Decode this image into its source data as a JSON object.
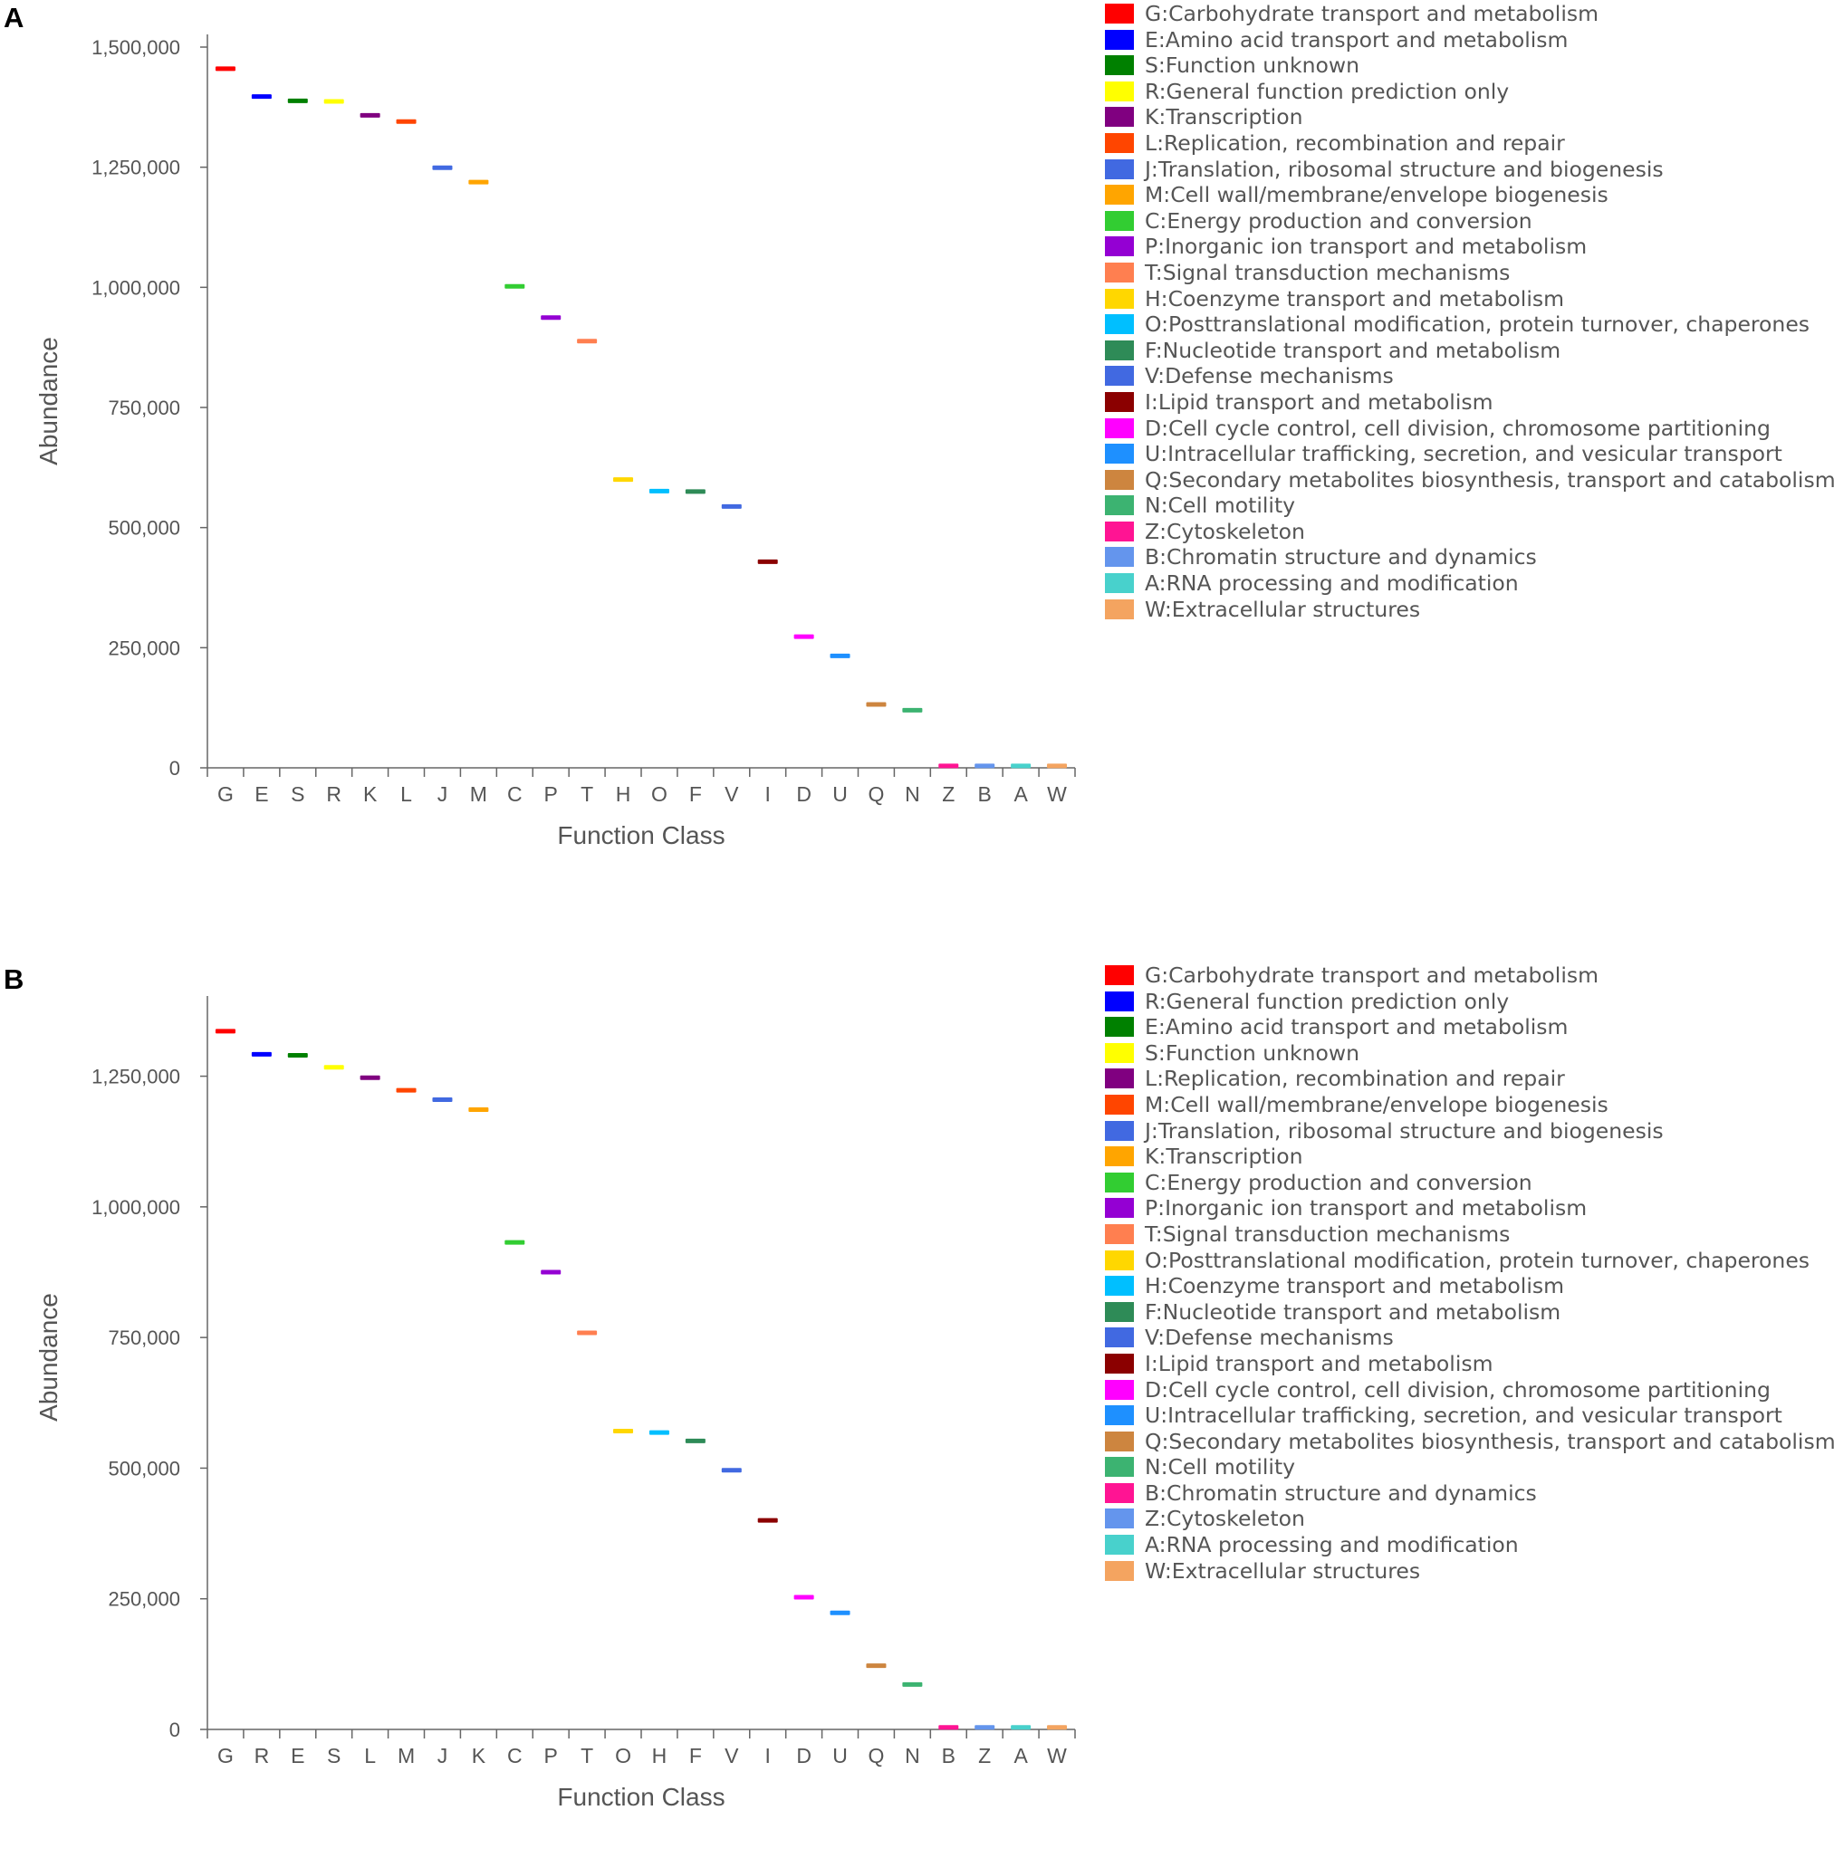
{
  "chart_data": [
    {
      "type": "box",
      "panel_label": "A",
      "xlabel": "Function Class",
      "ylabel": "Abundance",
      "ylim": [
        0,
        1500000
      ],
      "yticks": [
        0,
        250000,
        500000,
        750000,
        1000000,
        1250000,
        1500000
      ],
      "ytick_labels": [
        "0",
        "250,000",
        "500,000",
        "750,000",
        "1,000,000",
        "1,250,000",
        "1,500,000"
      ],
      "categories": [
        "G",
        "E",
        "S",
        "R",
        "K",
        "L",
        "J",
        "M",
        "C",
        "P",
        "T",
        "H",
        "O",
        "F",
        "V",
        "I",
        "D",
        "U",
        "Q",
        "N",
        "Z",
        "B",
        "A",
        "W"
      ],
      "values": [
        1455000,
        1397000,
        1388000,
        1387000,
        1358000,
        1345000,
        1249000,
        1219000,
        1002000,
        937000,
        888000,
        600000,
        576000,
        575000,
        544000,
        429000,
        273000,
        233000,
        132000,
        120000,
        4000,
        4000,
        4000,
        4000
      ],
      "colors": [
        "#ff0000",
        "#0000ff",
        "#008000",
        "#ffff00",
        "#800080",
        "#ff4500",
        "#4169e1",
        "#ffa500",
        "#32cd32",
        "#9400d3",
        "#ff7f50",
        "#ffd700",
        "#00bfff",
        "#2e8b57",
        "#4169e1",
        "#8b0000",
        "#ff00ff",
        "#1e90ff",
        "#cd853f",
        "#3cb371",
        "#ff1493",
        "#6495ed",
        "#48d1cc",
        "#f4a460"
      ],
      "legend": [
        {
          "label": "G:Carbohydrate transport and metabolism",
          "color": "#ff0000"
        },
        {
          "label": "E:Amino acid transport and metabolism",
          "color": "#0000ff"
        },
        {
          "label": "S:Function unknown",
          "color": "#008000"
        },
        {
          "label": "R:General function prediction only",
          "color": "#ffff00"
        },
        {
          "label": "K:Transcription",
          "color": "#800080"
        },
        {
          "label": "L:Replication, recombination and repair",
          "color": "#ff4500"
        },
        {
          "label": "J:Translation, ribosomal structure and biogenesis",
          "color": "#4169e1"
        },
        {
          "label": "M:Cell wall/membrane/envelope biogenesis",
          "color": "#ffa500"
        },
        {
          "label": "C:Energy production and conversion",
          "color": "#32cd32"
        },
        {
          "label": "P:Inorganic ion transport and metabolism",
          "color": "#9400d3"
        },
        {
          "label": "T:Signal transduction mechanisms",
          "color": "#ff7f50"
        },
        {
          "label": "H:Coenzyme transport and metabolism",
          "color": "#ffd700"
        },
        {
          "label": "O:Posttranslational modification, protein turnover, chaperones",
          "color": "#00bfff"
        },
        {
          "label": "F:Nucleotide transport and metabolism",
          "color": "#2e8b57"
        },
        {
          "label": "V:Defense mechanisms",
          "color": "#4169e1"
        },
        {
          "label": "I:Lipid transport and metabolism",
          "color": "#8b0000"
        },
        {
          "label": "D:Cell cycle control, cell division, chromosome partitioning",
          "color": "#ff00ff"
        },
        {
          "label": "U:Intracellular trafficking, secretion, and vesicular transport",
          "color": "#1e90ff"
        },
        {
          "label": "Q:Secondary metabolites biosynthesis, transport and catabolism",
          "color": "#cd853f"
        },
        {
          "label": "N:Cell motility",
          "color": "#3cb371"
        },
        {
          "label": "Z:Cytoskeleton",
          "color": "#ff1493"
        },
        {
          "label": "B:Chromatin structure and dynamics",
          "color": "#6495ed"
        },
        {
          "label": "A:RNA processing and modification",
          "color": "#48d1cc"
        },
        {
          "label": "W:Extracellular structures",
          "color": "#f4a460"
        }
      ]
    },
    {
      "type": "box",
      "panel_label": "B",
      "xlabel": "Function Class",
      "ylabel": "Abundance",
      "ylim": [
        0,
        1400000
      ],
      "yticks": [
        0,
        250000,
        500000,
        750000,
        1000000,
        1250000
      ],
      "ytick_labels": [
        "0",
        "250,000",
        "500,000",
        "750,000",
        "1,000,000",
        "1,250,000"
      ],
      "categories": [
        "G",
        "R",
        "E",
        "S",
        "L",
        "M",
        "J",
        "K",
        "C",
        "P",
        "T",
        "O",
        "H",
        "F",
        "V",
        "I",
        "D",
        "U",
        "Q",
        "N",
        "B",
        "Z",
        "A",
        "W"
      ],
      "values": [
        1336000,
        1292000,
        1290000,
        1267000,
        1247000,
        1223000,
        1205000,
        1186000,
        932000,
        875000,
        759000,
        571000,
        568000,
        552000,
        496000,
        400000,
        253000,
        223000,
        122000,
        86000,
        4000,
        4000,
        4000,
        4000
      ],
      "colors": [
        "#ff0000",
        "#0000ff",
        "#008000",
        "#ffff00",
        "#800080",
        "#ff4500",
        "#4169e1",
        "#ffa500",
        "#32cd32",
        "#9400d3",
        "#ff7f50",
        "#ffd700",
        "#00bfff",
        "#2e8b57",
        "#4169e1",
        "#8b0000",
        "#ff00ff",
        "#1e90ff",
        "#cd853f",
        "#3cb371",
        "#ff1493",
        "#6495ed",
        "#48d1cc",
        "#f4a460"
      ],
      "legend": [
        {
          "label": "G:Carbohydrate transport and metabolism",
          "color": "#ff0000"
        },
        {
          "label": "R:General function prediction only",
          "color": "#0000ff"
        },
        {
          "label": "E:Amino acid transport and metabolism",
          "color": "#008000"
        },
        {
          "label": "S:Function unknown",
          "color": "#ffff00"
        },
        {
          "label": "L:Replication, recombination and repair",
          "color": "#800080"
        },
        {
          "label": "M:Cell wall/membrane/envelope biogenesis",
          "color": "#ff4500"
        },
        {
          "label": "J:Translation, ribosomal structure and biogenesis",
          "color": "#4169e1"
        },
        {
          "label": "K:Transcription",
          "color": "#ffa500"
        },
        {
          "label": "C:Energy production and conversion",
          "color": "#32cd32"
        },
        {
          "label": "P:Inorganic ion transport and metabolism",
          "color": "#9400d3"
        },
        {
          "label": "T:Signal transduction mechanisms",
          "color": "#ff7f50"
        },
        {
          "label": "O:Posttranslational modification, protein turnover, chaperones",
          "color": "#ffd700"
        },
        {
          "label": "H:Coenzyme transport and metabolism",
          "color": "#00bfff"
        },
        {
          "label": "F:Nucleotide transport and metabolism",
          "color": "#2e8b57"
        },
        {
          "label": "V:Defense mechanisms",
          "color": "#4169e1"
        },
        {
          "label": "I:Lipid transport and metabolism",
          "color": "#8b0000"
        },
        {
          "label": "D:Cell cycle control, cell division, chromosome partitioning",
          "color": "#ff00ff"
        },
        {
          "label": "U:Intracellular trafficking, secretion, and vesicular transport",
          "color": "#1e90ff"
        },
        {
          "label": "Q:Secondary metabolites biosynthesis, transport and catabolism",
          "color": "#cd853f"
        },
        {
          "label": "N:Cell motility",
          "color": "#3cb371"
        },
        {
          "label": "B:Chromatin structure and dynamics",
          "color": "#ff1493"
        },
        {
          "label": "Z:Cytoskeleton",
          "color": "#6495ed"
        },
        {
          "label": "A:RNA processing and modification",
          "color": "#48d1cc"
        },
        {
          "label": "W:Extracellular structures",
          "color": "#f4a460"
        }
      ]
    }
  ]
}
